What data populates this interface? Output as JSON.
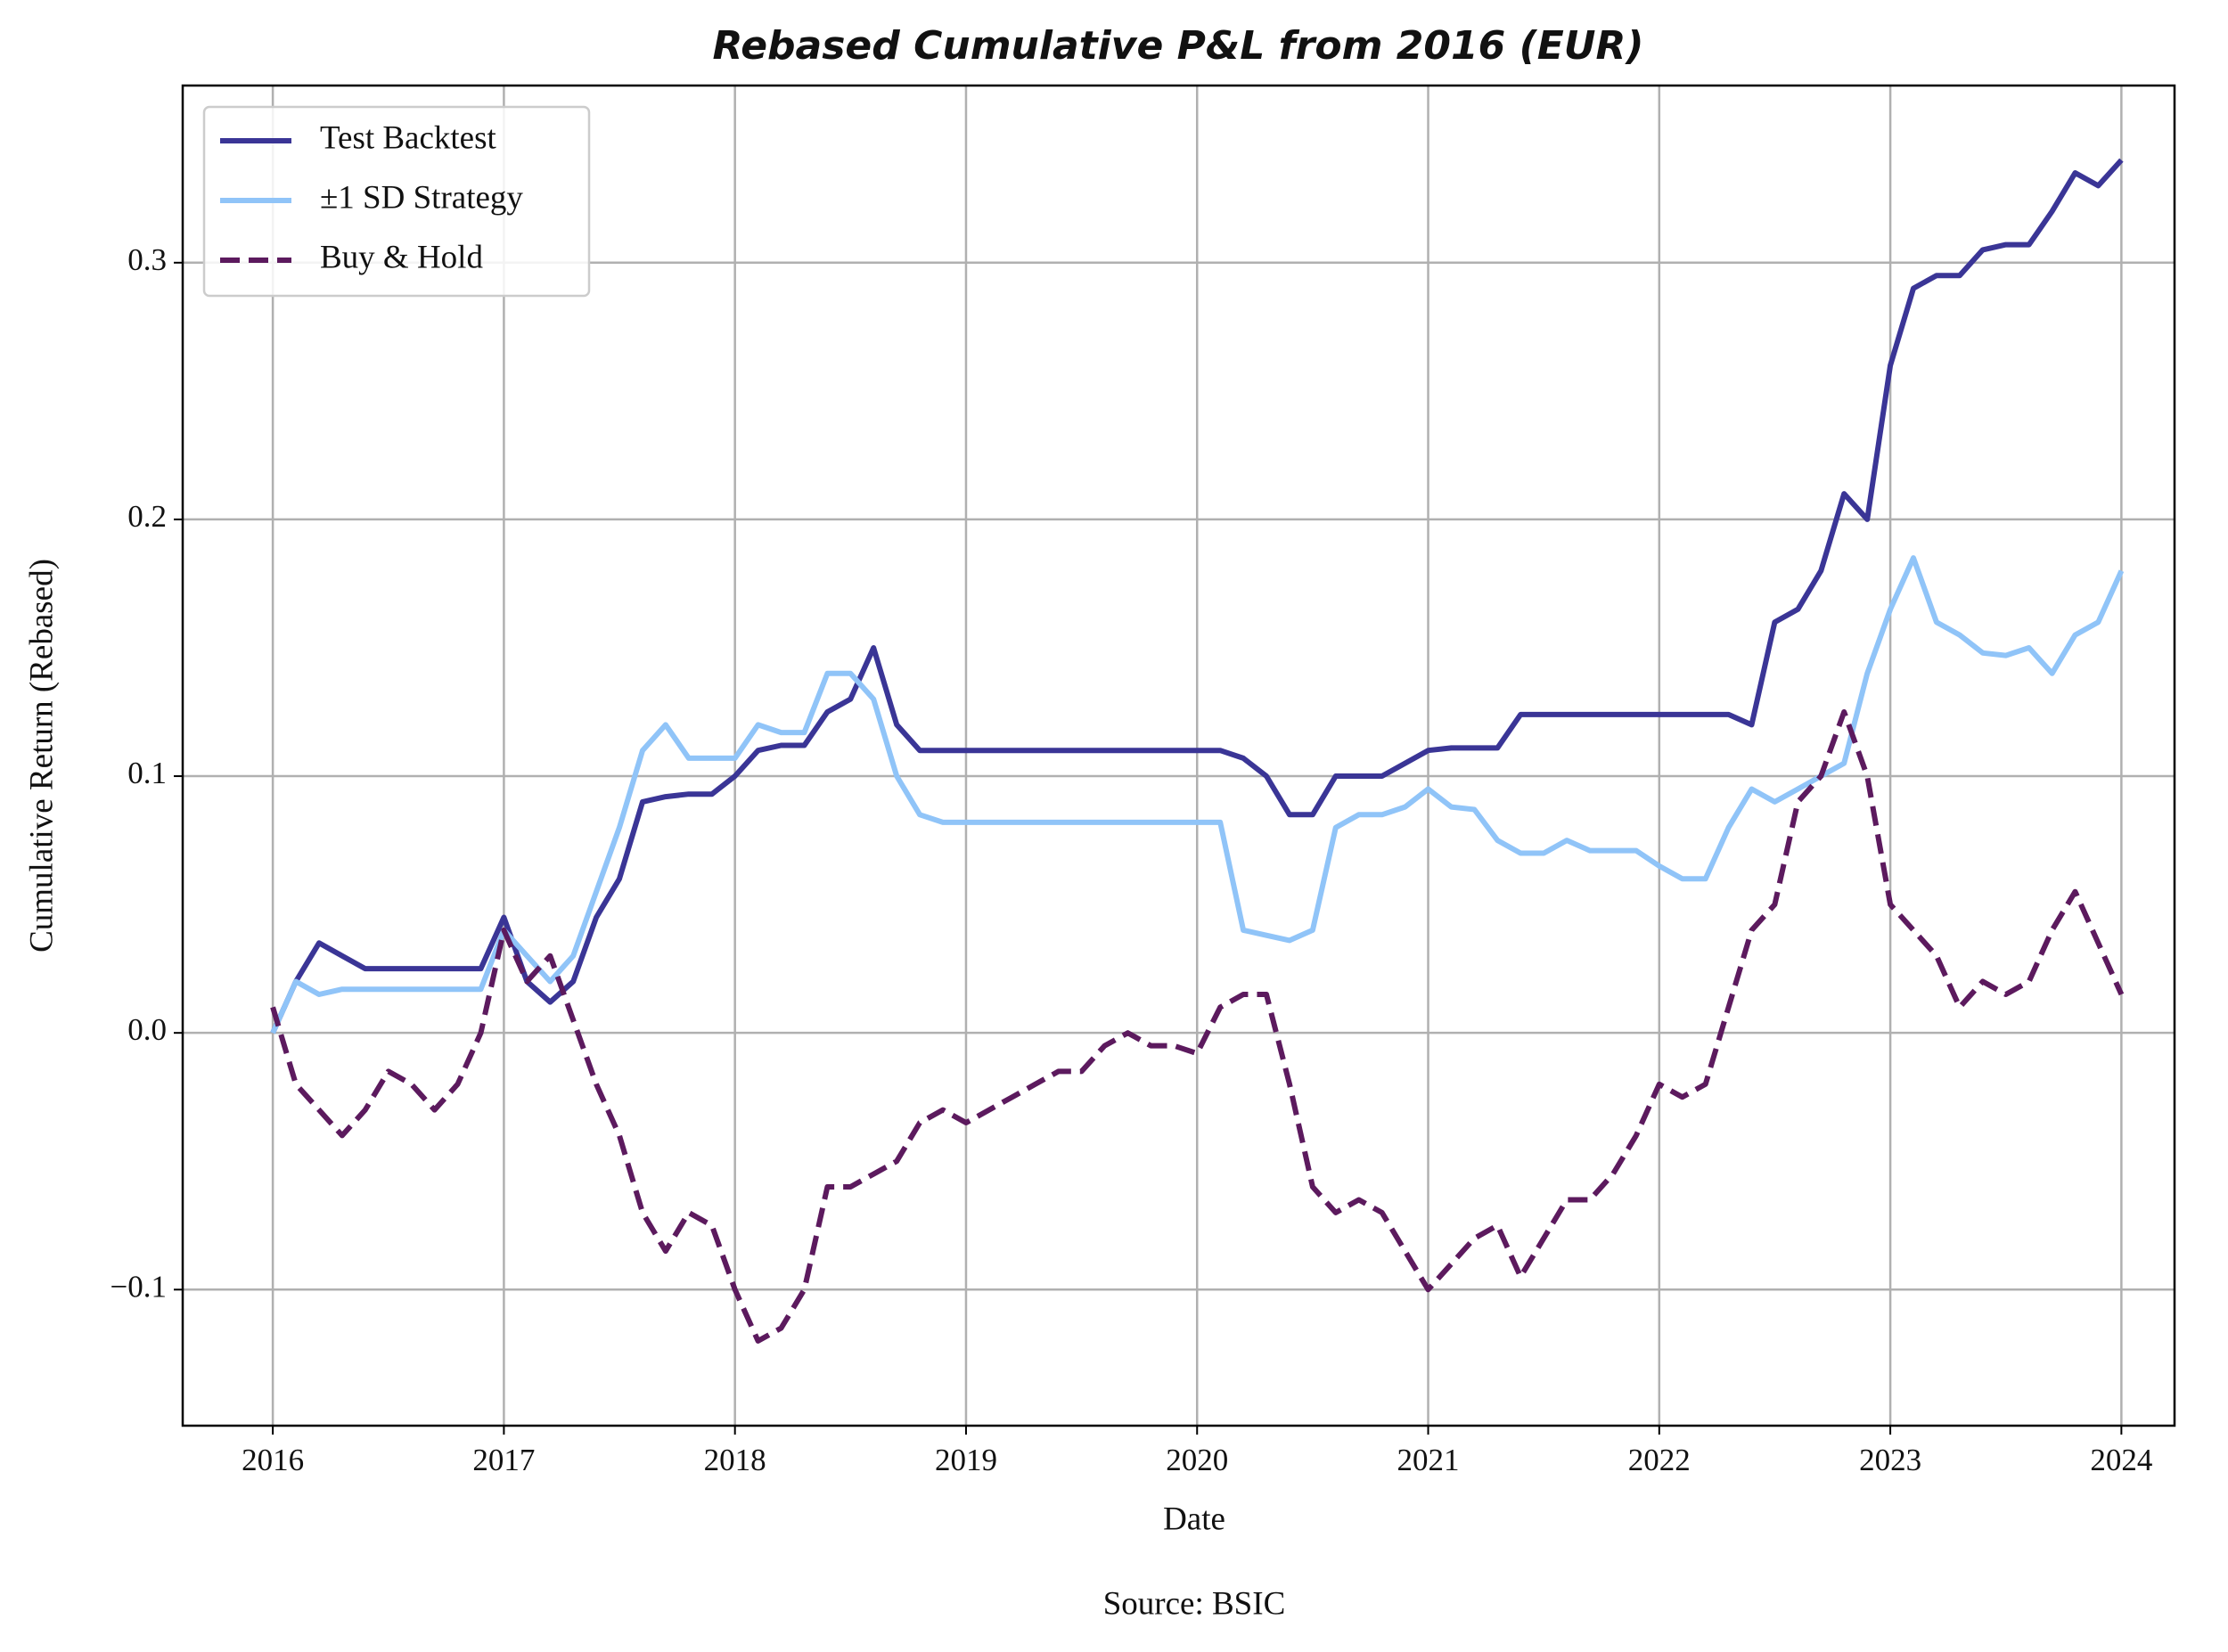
{
  "chart_data": {
    "type": "line",
    "title": "Rebased Cumulative P&L from 2016 (EUR)",
    "xlabel": "Date",
    "ylabel": "Cumulative Return (Rebased)",
    "source": "Source: BSIC",
    "x": [
      2016,
      2016.1,
      2016.2,
      2016.3,
      2016.4,
      2016.5,
      2016.6,
      2016.7,
      2016.8,
      2016.9,
      2017,
      2017.1,
      2017.2,
      2017.3,
      2017.4,
      2017.5,
      2017.6,
      2017.7,
      2017.8,
      2017.9,
      2018,
      2018.1,
      2018.2,
      2018.3,
      2018.4,
      2018.5,
      2018.6,
      2018.7,
      2018.8,
      2018.9,
      2019,
      2019.1,
      2019.2,
      2019.3,
      2019.4,
      2019.5,
      2019.6,
      2019.7,
      2019.8,
      2019.9,
      2020,
      2020.1,
      2020.2,
      2020.3,
      2020.4,
      2020.5,
      2020.6,
      2020.7,
      2020.8,
      2020.9,
      2021,
      2021.1,
      2021.2,
      2021.3,
      2021.4,
      2021.5,
      2021.6,
      2021.7,
      2021.8,
      2021.9,
      2022,
      2022.1,
      2022.2,
      2022.3,
      2022.4,
      2022.5,
      2022.6,
      2022.7,
      2022.8,
      2022.9,
      2023,
      2023.1,
      2023.2,
      2023.3,
      2023.4,
      2023.5,
      2023.6,
      2023.7,
      2023.8,
      2023.9,
      2024
    ],
    "series": [
      {
        "name": "Test Backtest",
        "color": "#3a3596",
        "dashed": false,
        "values": [
          0,
          0.02,
          0.035,
          0.03,
          0.025,
          0.025,
          0.025,
          0.025,
          0.025,
          0.025,
          0.045,
          0.02,
          0.012,
          0.02,
          0.045,
          0.06,
          0.09,
          0.092,
          0.093,
          0.093,
          0.1,
          0.11,
          0.112,
          0.112,
          0.125,
          0.13,
          0.15,
          0.12,
          0.11,
          0.11,
          0.11,
          0.11,
          0.11,
          0.11,
          0.11,
          0.11,
          0.11,
          0.11,
          0.11,
          0.11,
          0.11,
          0.11,
          0.107,
          0.1,
          0.085,
          0.085,
          0.1,
          0.1,
          0.1,
          0.105,
          0.11,
          0.111,
          0.111,
          0.111,
          0.124,
          0.124,
          0.124,
          0.124,
          0.124,
          0.124,
          0.124,
          0.124,
          0.124,
          0.124,
          0.12,
          0.16,
          0.165,
          0.18,
          0.21,
          0.2,
          0.26,
          0.29,
          0.295,
          0.295,
          0.305,
          0.307,
          0.307,
          0.32,
          0.335,
          0.33,
          0.34
        ]
      },
      {
        "name": "±1 SD Strategy",
        "color": "#90c4f8",
        "dashed": false,
        "values": [
          0,
          0.02,
          0.015,
          0.017,
          0.017,
          0.017,
          0.017,
          0.017,
          0.017,
          0.017,
          0.04,
          0.03,
          0.02,
          0.03,
          0.055,
          0.08,
          0.11,
          0.12,
          0.107,
          0.107,
          0.107,
          0.12,
          0.117,
          0.117,
          0.14,
          0.14,
          0.13,
          0.1,
          0.085,
          0.082,
          0.082,
          0.082,
          0.082,
          0.082,
          0.082,
          0.082,
          0.082,
          0.082,
          0.082,
          0.082,
          0.082,
          0.082,
          0.04,
          0.038,
          0.036,
          0.04,
          0.08,
          0.085,
          0.085,
          0.088,
          0.095,
          0.088,
          0.087,
          0.075,
          0.07,
          0.07,
          0.075,
          0.071,
          0.071,
          0.071,
          0.065,
          0.06,
          0.06,
          0.08,
          0.095,
          0.09,
          0.095,
          0.1,
          0.105,
          0.14,
          0.165,
          0.185,
          0.16,
          0.155,
          0.148,
          0.147,
          0.15,
          0.14,
          0.155,
          0.16,
          0.18
        ]
      },
      {
        "name": "Buy & Hold",
        "color": "#5c1a5e",
        "dashed": true,
        "values": [
          0.01,
          -0.02,
          -0.03,
          -0.04,
          -0.03,
          -0.015,
          -0.02,
          -0.03,
          -0.02,
          0,
          0.04,
          0.02,
          0.03,
          0.005,
          -0.02,
          -0.04,
          -0.07,
          -0.085,
          -0.07,
          -0.075,
          -0.1,
          -0.12,
          -0.115,
          -0.1,
          -0.06,
          -0.06,
          -0.055,
          -0.05,
          -0.035,
          -0.03,
          -0.035,
          -0.03,
          -0.025,
          -0.02,
          -0.015,
          -0.015,
          -0.005,
          0,
          -0.005,
          -0.005,
          -0.008,
          0.01,
          0.015,
          0.015,
          -0.02,
          -0.06,
          -0.07,
          -0.065,
          -0.07,
          -0.085,
          -0.1,
          -0.09,
          -0.08,
          -0.075,
          -0.095,
          -0.08,
          -0.065,
          -0.065,
          -0.055,
          -0.04,
          -0.02,
          -0.025,
          -0.02,
          0.01,
          0.04,
          0.05,
          0.09,
          0.1,
          0.125,
          0.1,
          0.05,
          0.04,
          0.03,
          0.01,
          0.02,
          0.015,
          0.02,
          0.04,
          0.055,
          0.035,
          0.015
        ]
      }
    ],
    "xlim": [
      2015.61,
      2024.23
    ],
    "ylim": [
      -0.153,
      0.369
    ],
    "xticks": [
      2016,
      2017,
      2018,
      2019,
      2020,
      2021,
      2022,
      2023,
      2024
    ],
    "yticks": [
      {
        "value": -0.1,
        "label": "−0.1"
      },
      {
        "value": 0,
        "label": "0.0"
      },
      0.1,
      0.2,
      0.3
    ],
    "grid": true,
    "legend": "upper left"
  }
}
